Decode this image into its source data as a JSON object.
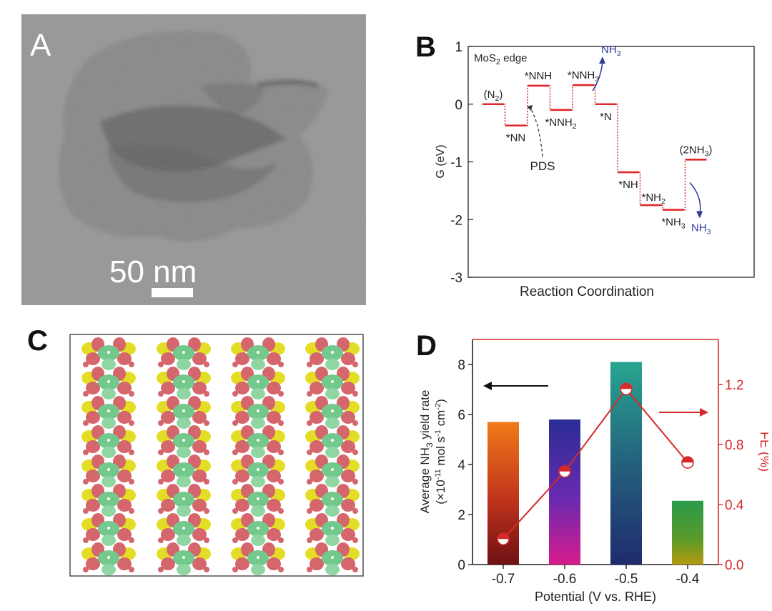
{
  "panel_letters": {
    "a": "A",
    "b": "B",
    "c": "C",
    "d": "D"
  },
  "panel_a": {
    "scale_bar_label": "50 nm"
  },
  "chart_data": [
    {
      "panel": "B",
      "type": "line",
      "ylabel": "G (eV)",
      "xlabel": "Reaction Coordination",
      "annotation_edge": "MoS",
      "annotation_edge_sub": "2",
      "annotation_edge_tail": " edge",
      "annotation_pds": "PDS",
      "ylim": [
        -3,
        1
      ],
      "yticks": [
        1,
        0,
        -1,
        -2,
        -3
      ],
      "line_color": "#e0282d",
      "product_color": "#2b3a9b",
      "steps": [
        {
          "label": "(N",
          "sub": "2",
          "tail": ")",
          "value": 0.0
        },
        {
          "label": "*NN",
          "sub": "",
          "tail": "",
          "value": -0.37
        },
        {
          "label": "*NNH",
          "sub": "",
          "tail": "",
          "value": 0.32
        },
        {
          "label": "*NNH",
          "sub": "2",
          "tail": "",
          "value": -0.1
        },
        {
          "label": "*NNH",
          "sub": "3",
          "tail": "",
          "value": 0.33
        },
        {
          "label": "*N",
          "sub": "",
          "tail": "",
          "value": 0.0
        },
        {
          "label": "*NH",
          "sub": "",
          "tail": "",
          "value": -1.18
        },
        {
          "label": "*NH",
          "sub": "2",
          "tail": "",
          "value": -1.75
        },
        {
          "label": "*NH",
          "sub": "3",
          "tail": "",
          "value": -1.83
        },
        {
          "label": "(2NH",
          "sub": "3",
          "tail": ")",
          "value": -0.96
        }
      ],
      "products": [
        {
          "label": "NH",
          "sub": "3"
        },
        {
          "label": "NH",
          "sub": "3"
        }
      ]
    },
    {
      "panel": "D",
      "type": "bar",
      "xlabel": "Potential (V vs. RHE)",
      "ylabel_left_line1_a": "Average NH",
      "ylabel_left_line1_sub": "3",
      "ylabel_left_line1_b": " yield rate",
      "ylabel_left_line2_a": "(×10",
      "ylabel_left_line2_e1": "-11",
      "ylabel_left_line2_b": " mol s",
      "ylabel_left_line2_e2": "-1",
      "ylabel_left_line2_c": " cm",
      "ylabel_left_line2_e3": "-2",
      "ylabel_left_line2_d": ")",
      "ylabel_right": "FE (%)",
      "categories": [
        "-0.7",
        "-0.6",
        "-0.5",
        "-0.4"
      ],
      "ylim_left": [
        0,
        9
      ],
      "yticks_left": [
        0,
        2,
        4,
        6,
        8
      ],
      "ylim_right": [
        0.0,
        1.5
      ],
      "yticks_right": [
        "0.0",
        "0.4",
        "0.8",
        "1.2"
      ],
      "right_axis_color": "#d62a2a",
      "series": [
        {
          "name": "NH3 yield rate",
          "axis": "left",
          "values": [
            5.7,
            5.8,
            8.1,
            2.55
          ]
        },
        {
          "name": "FE",
          "axis": "right",
          "values": [
            0.17,
            0.62,
            1.17,
            0.68
          ]
        }
      ]
    }
  ]
}
